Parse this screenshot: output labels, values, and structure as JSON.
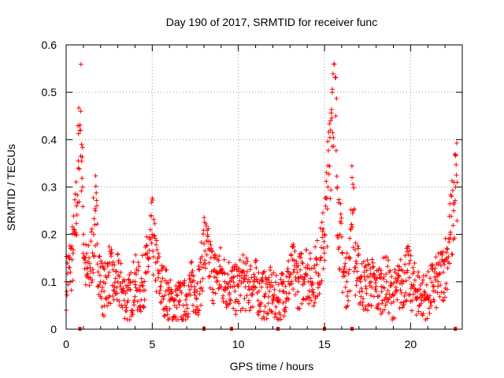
{
  "chart_data": {
    "type": "scatter",
    "title": "Day 190 of 2017, SRMTID for receiver func",
    "xlabel": "GPS time / hours",
    "ylabel": "SRMTID / TECUs",
    "xlim": [
      0,
      23
    ],
    "ylim": [
      0,
      0.6
    ],
    "xticks": [
      0,
      5,
      10,
      15,
      20
    ],
    "yticks": [
      0,
      0.1,
      0.2,
      0.3,
      0.4,
      0.5,
      0.6
    ],
    "xtick_labels": [
      "0",
      "5",
      "10",
      "15",
      "20"
    ],
    "ytick_labels": [
      "0",
      "0.1",
      "0.2",
      "0.3",
      "0.4",
      "0.5",
      "0.6"
    ],
    "grid": true,
    "marker": "+",
    "color": "#ff0000",
    "baseline_markers_x": [
      0.8,
      8.0,
      9.6,
      12.3,
      15.0,
      16.6,
      22.6
    ],
    "series": [
      {
        "name": "SRMTID",
        "x": [
          0.0,
          0.2,
          0.4,
          0.5,
          0.6,
          0.7,
          0.8,
          0.85,
          0.9,
          0.95,
          1.0,
          1.1,
          1.2,
          1.4,
          1.6,
          1.7,
          1.8,
          2.0,
          2.2,
          2.5,
          2.8,
          3.0,
          3.3,
          3.6,
          4.0,
          4.3,
          4.6,
          4.8,
          5.0,
          5.2,
          5.5,
          5.8,
          6.0,
          6.3,
          6.6,
          6.8,
          7.0,
          7.3,
          7.6,
          7.8,
          8.0,
          8.3,
          8.6,
          8.9,
          9.2,
          9.5,
          9.8,
          10.0,
          10.3,
          10.6,
          10.9,
          11.2,
          11.5,
          11.8,
          12.0,
          12.3,
          12.6,
          12.9,
          13.2,
          13.5,
          13.7,
          13.9,
          14.2,
          14.5,
          14.8,
          15.0,
          15.2,
          15.35,
          15.45,
          15.55,
          15.65,
          15.75,
          15.9,
          16.1,
          16.3,
          16.5,
          16.6,
          16.8,
          17.1,
          17.4,
          17.7,
          18.0,
          18.3,
          18.6,
          18.9,
          19.2,
          19.5,
          19.8,
          20.1,
          20.4,
          20.7,
          21.0,
          21.3,
          21.6,
          21.9,
          22.1,
          22.3,
          22.5,
          22.6,
          22.7
        ],
        "y": [
          0.1,
          0.13,
          0.16,
          0.2,
          0.26,
          0.34,
          0.42,
          0.46,
          0.39,
          0.3,
          0.2,
          0.14,
          0.11,
          0.13,
          0.2,
          0.25,
          0.18,
          0.1,
          0.08,
          0.12,
          0.09,
          0.1,
          0.08,
          0.06,
          0.1,
          0.08,
          0.12,
          0.15,
          0.2,
          0.14,
          0.09,
          0.08,
          0.06,
          0.05,
          0.06,
          0.05,
          0.07,
          0.09,
          0.08,
          0.1,
          0.18,
          0.14,
          0.11,
          0.12,
          0.1,
          0.1,
          0.08,
          0.09,
          0.1,
          0.09,
          0.1,
          0.08,
          0.07,
          0.08,
          0.07,
          0.06,
          0.08,
          0.1,
          0.12,
          0.1,
          0.11,
          0.13,
          0.1,
          0.12,
          0.15,
          0.2,
          0.3,
          0.42,
          0.5,
          0.56,
          0.45,
          0.3,
          0.2,
          0.12,
          0.1,
          0.15,
          0.32,
          0.13,
          0.1,
          0.09,
          0.1,
          0.08,
          0.09,
          0.1,
          0.07,
          0.08,
          0.1,
          0.12,
          0.09,
          0.08,
          0.07,
          0.07,
          0.09,
          0.1,
          0.12,
          0.15,
          0.2,
          0.25,
          0.3,
          0.31
        ]
      }
    ]
  }
}
